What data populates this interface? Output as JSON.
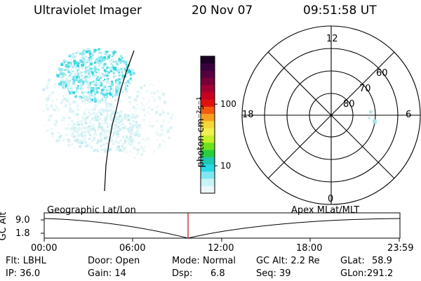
{
  "header": {
    "title": "Ultraviolet Imager",
    "date": "20 Nov 07",
    "time": "09:51:58 UT"
  },
  "colorbar": {
    "unit_label": "photon cm⁻²s⁻¹",
    "ticks": [
      "100",
      "10"
    ],
    "colors": [
      "#1a0026",
      "#3a0040",
      "#55003f",
      "#7a003a",
      "#a00032",
      "#c80020",
      "#e21010",
      "#f25a10",
      "#f7a020",
      "#f5d838",
      "#f2f050",
      "#c6ee2a",
      "#6ee01e",
      "#26cf3c",
      "#1ec8b4",
      "#26d9e6",
      "#7fe6f0",
      "#c7f2f6",
      "#eaf8fa"
    ],
    "tick_fractions": [
      0.35,
      0.8
    ]
  },
  "polar": {
    "labels": [
      "12",
      "18",
      "6",
      "0",
      "60",
      "70",
      "80"
    ]
  },
  "timeline": {
    "ylabel": "GC Alt",
    "yticks": [
      "9.0",
      "1.8"
    ],
    "left_title": "Geographic Lat/Lon",
    "right_title": "Apex  MLat/MLT",
    "xticks": [
      "00:00",
      "06:00",
      "12:00",
      "18:00",
      "23:59"
    ],
    "marker_color": "#cc0000"
  },
  "footer": {
    "flt": "Flt: LBHL",
    "ip": "IP: 36.0",
    "door": "Door: Open",
    "gain": "Gain: 14",
    "mode": "Mode: Normal",
    "dsp_label": "Dsp:",
    "dsp_value": "6.8",
    "gcalt": "GC Alt: 2.2 Re",
    "seq": "Seq: 39",
    "glat_label": "GLat:",
    "glat_value": "58.9",
    "glon_label": "GLon:",
    "glon_value": "291.2"
  }
}
